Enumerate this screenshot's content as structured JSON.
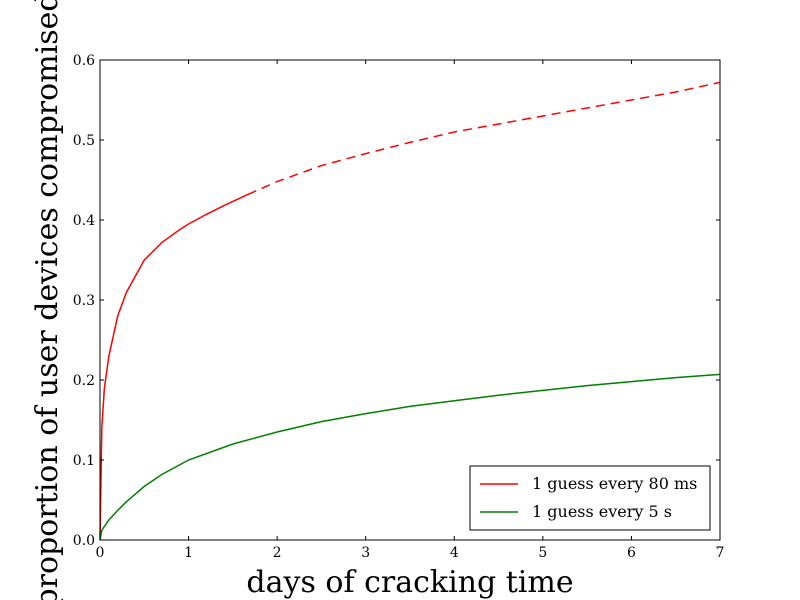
{
  "chart_data": {
    "type": "line",
    "title": "",
    "xlabel": "days of cracking time",
    "ylabel": "proportion of user devices compromised",
    "xlim": [
      0,
      7
    ],
    "ylim": [
      0.0,
      0.6
    ],
    "x_ticks": [
      0,
      1,
      2,
      3,
      4,
      5,
      6,
      7
    ],
    "x_tick_labels": [
      "0",
      "1",
      "2",
      "3",
      "4",
      "5",
      "6",
      "7"
    ],
    "y_ticks": [
      0.0,
      0.1,
      0.2,
      0.3,
      0.4,
      0.5,
      0.6
    ],
    "y_tick_labels": [
      "0.0",
      "0.1",
      "0.2",
      "0.3",
      "0.4",
      "0.5",
      "0.6"
    ],
    "grid": false,
    "legend_position": "lower-right",
    "series": [
      {
        "name": "1 guess every 80 ms",
        "color": "#ff0000",
        "solid_until_x": 1.67,
        "x": [
          0,
          0.02,
          0.05,
          0.1,
          0.2,
          0.3,
          0.5,
          0.7,
          0.9,
          1.0,
          1.2,
          1.4,
          1.67,
          2.0,
          2.5,
          3.0,
          3.5,
          4.0,
          4.5,
          5.0,
          5.5,
          6.0,
          6.5,
          7.0
        ],
        "y": [
          0.0,
          0.14,
          0.19,
          0.23,
          0.28,
          0.31,
          0.35,
          0.372,
          0.388,
          0.395,
          0.407,
          0.418,
          0.432,
          0.448,
          0.468,
          0.483,
          0.497,
          0.51,
          0.52,
          0.53,
          0.54,
          0.55,
          0.56,
          0.572
        ]
      },
      {
        "name": "1 guess every 5 s",
        "color": "#008000",
        "x": [
          0,
          0.02,
          0.05,
          0.1,
          0.2,
          0.3,
          0.5,
          0.7,
          1.0,
          1.5,
          2.0,
          2.5,
          3.0,
          3.5,
          4.0,
          4.5,
          5.0,
          5.5,
          6.0,
          6.5,
          7.0
        ],
        "y": [
          0.0,
          0.012,
          0.017,
          0.025,
          0.037,
          0.048,
          0.067,
          0.082,
          0.1,
          0.12,
          0.135,
          0.148,
          0.158,
          0.167,
          0.174,
          0.181,
          0.187,
          0.193,
          0.198,
          0.203,
          0.207
        ]
      }
    ]
  }
}
